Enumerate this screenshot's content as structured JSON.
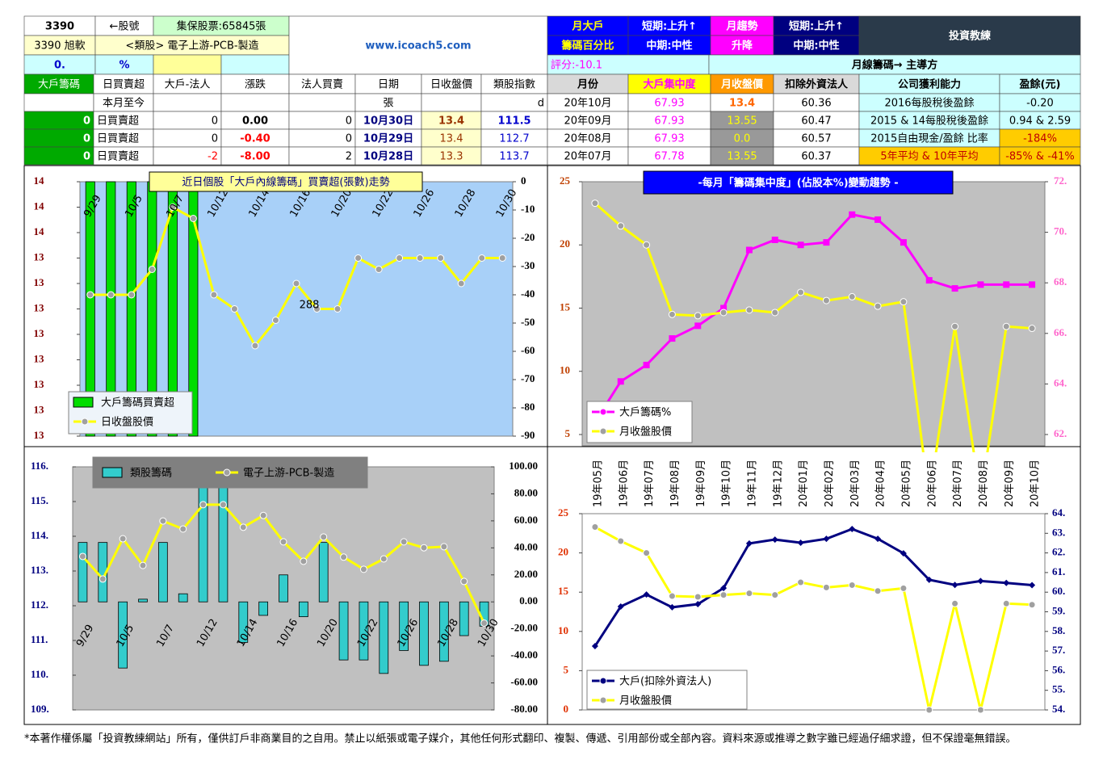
{
  "header": {
    "stock_no": "3390",
    "stock_no_label": "←股號",
    "shares": "集保股票:65845張",
    "name": "3390 旭軟",
    "sector": "<類股> 電子上游-PCB-製造",
    "pct": "0.",
    "pct_unit": "%",
    "site": "www.icoach5.com",
    "m1a": "月大戶",
    "m1b": "籌碼百分比",
    "s1": "短期:上升↑",
    "m1": "中期:中性",
    "t1a": "月趨勢",
    "t1b": "升降",
    "s2": "短期:上升↑",
    "m2": "中期:中性",
    "logo": "投資教練",
    "score": "評分:-10.1",
    "main": "月線籌碼→ 主導方"
  },
  "left_table": {
    "columns": [
      "大戶籌碼",
      "日買賣超",
      "大戶-法人",
      "漲跌",
      "法人買賣",
      "日期",
      "日收盤價",
      "類股指數"
    ],
    "subheader": [
      "本月至今",
      "張",
      "d"
    ],
    "rows": [
      [
        "0",
        "日買賣超",
        "0",
        "0.00",
        "0",
        "10月30日",
        "13.4",
        "111.5"
      ],
      [
        "0",
        "日買賣超",
        "0",
        "-0.40",
        "0",
        "10月29日",
        "13.4",
        "112.7"
      ],
      [
        "0",
        "日買賣超",
        "-2",
        "-8.00",
        "2",
        "10月28日",
        "13.3",
        "113.7"
      ]
    ]
  },
  "right_table": {
    "columns": [
      "月份",
      "大戶集中度",
      "月收盤價",
      "扣除外資法人",
      "公司獲利能力",
      "盈餘(元)"
    ],
    "rows": [
      [
        "20年10月",
        "67.93",
        "13.4",
        "60.36",
        "2016每股稅後盈餘",
        "-0.20"
      ],
      [
        "20年09月",
        "67.93",
        "13.55",
        "60.47",
        "2015 & 14每股稅後盈餘",
        "0.94 & 2.59"
      ],
      [
        "20年08月",
        "67.93",
        "0.0",
        "60.57",
        "2015自由現金/盈餘 比率",
        "-184%"
      ],
      [
        "20年07月",
        "67.78",
        "13.55",
        "60.37",
        "5年平均 & 10年平均",
        "-85% & -41%"
      ]
    ]
  },
  "chart_data": [
    {
      "type": "combo",
      "title": "近日個股「大戶內線籌碼」買賣超(張數)走勢",
      "annotation": "288",
      "categories": [
        "9/29",
        null,
        "10/5",
        null,
        "10/7",
        null,
        "10/12",
        null,
        "10/14",
        null,
        "10/16",
        null,
        "10/20",
        null,
        "10/22",
        null,
        "10/26",
        null,
        "10/28",
        null,
        "10/30"
      ],
      "ylim": [
        13,
        14
      ],
      "yticks": [
        {
          "value": 14,
          "label": "14"
        },
        {
          "value": 13.9,
          "label": "14"
        },
        {
          "value": 13.8,
          "label": "14"
        },
        {
          "value": 13.7,
          "label": "13"
        },
        {
          "value": 13.6,
          "label": "13"
        },
        {
          "value": 13.5,
          "label": "13"
        },
        {
          "value": 13.4,
          "label": "13"
        },
        {
          "value": 13.3,
          "label": "13"
        },
        {
          "value": 13.2,
          "label": "13"
        },
        {
          "value": 13.1,
          "label": "13"
        },
        {
          "value": 13,
          "label": "13"
        }
      ],
      "y2lim": [
        -90,
        0
      ],
      "y2ticks": [
        0,
        -10,
        -20,
        -30,
        -40,
        -50,
        -60,
        -70,
        -80,
        -90
      ],
      "series": [
        {
          "name": "大戶籌碼買賣超",
          "type": "bar",
          "color": "#00dd00",
          "axis": "y2",
          "values": [
            -90,
            -90,
            -90,
            -90,
            -90,
            -90,
            0,
            0,
            0,
            0,
            0,
            0,
            0,
            0,
            0,
            0,
            0,
            0,
            0,
            0,
            0
          ]
        },
        {
          "name": "日收盤股價",
          "type": "line",
          "color": "#ffff00",
          "marker": "circle",
          "axis": "y2",
          "values": [
            -40,
            -40,
            -40,
            -31,
            -9,
            -13,
            -40,
            -45,
            -58,
            -49,
            -36,
            -45,
            -45,
            -27,
            -31,
            -27,
            -27,
            -27,
            -36,
            -27,
            -27
          ]
        }
      ]
    },
    {
      "type": "line",
      "title": "-每月「籌碼集中度」(佔股本%)變動趨勢 -",
      "ylim": [
        5,
        25
      ],
      "yticks": [
        5,
        10,
        15,
        20,
        25
      ],
      "y2lim": [
        62,
        72
      ],
      "y2ticks": [
        {
          "value": 72,
          "label": "72."
        },
        {
          "value": 70,
          "label": "70."
        },
        {
          "value": 68,
          "label": "68."
        },
        {
          "value": 66,
          "label": "66."
        },
        {
          "value": 64,
          "label": "64."
        },
        {
          "value": 62,
          "label": "62."
        }
      ],
      "series": [
        {
          "name": "大戶籌碼%",
          "type": "line",
          "color": "#ff00ff",
          "marker": "square",
          "axis": "y2",
          "values": [
            62.5,
            64.1,
            64.75,
            65.8,
            66.3,
            67.0,
            69.3,
            69.7,
            69.5,
            69.6,
            70.7,
            70.5,
            69.6,
            68.1,
            67.78,
            67.93,
            67.93,
            67.93
          ]
        },
        {
          "name": "月收盤股價",
          "type": "line",
          "color": "#ffff00",
          "marker": "circle",
          "values": [
            23.3,
            21.5,
            20.0,
            14.5,
            14.4,
            14.65,
            14.85,
            14.65,
            16.25,
            15.6,
            15.9,
            15.15,
            15.5,
            0,
            13.55,
            0.0,
            13.55,
            13.4
          ]
        }
      ]
    },
    {
      "type": "combo",
      "categories": [
        "9/29",
        null,
        "10/5",
        null,
        "10/7",
        null,
        "10/12",
        null,
        "10/14",
        null,
        "10/16",
        null,
        "10/20",
        null,
        "10/22",
        null,
        "10/26",
        null,
        "10/28",
        null,
        "10/30"
      ],
      "ylim": [
        109,
        116
      ],
      "yticks": [
        {
          "value": 116,
          "label": "116."
        },
        {
          "value": 115,
          "label": "115."
        },
        {
          "value": 114,
          "label": "114."
        },
        {
          "value": 113,
          "label": "113."
        },
        {
          "value": 112,
          "label": "112."
        },
        {
          "value": 111,
          "label": "111."
        },
        {
          "value": 110,
          "label": "110."
        },
        {
          "value": 109,
          "label": "109."
        }
      ],
      "y2lim": [
        -80,
        100
      ],
      "y2ticks": [
        {
          "value": 100,
          "label": "100.00"
        },
        {
          "value": 80,
          "label": "80.00"
        },
        {
          "value": 60,
          "label": "60.00"
        },
        {
          "value": 40,
          "label": "40.00"
        },
        {
          "value": 20,
          "label": "20.00"
        },
        {
          "value": 0,
          "label": "0.00"
        },
        {
          "value": -20,
          "label": "-20.00"
        },
        {
          "value": -40,
          "label": "-40.00"
        },
        {
          "value": -60,
          "label": "-60.00"
        },
        {
          "value": -80,
          "label": "-80.00"
        }
      ],
      "series": [
        {
          "name": "類股籌碼",
          "type": "bar",
          "color": "#33cccc",
          "axis": "y2",
          "values": [
            44,
            44,
            -49,
            2,
            44,
            6,
            87,
            87,
            -30,
            -10,
            20,
            -11,
            44,
            -43,
            -43,
            -53,
            -36,
            -47,
            -44,
            -25,
            -18
          ]
        },
        {
          "name": "電子上游-PCB-製造",
          "type": "line",
          "color": "#ffff00",
          "marker": "circle",
          "values": [
            113.42,
            112.77,
            113.93,
            113.16,
            114.44,
            114.21,
            114.91,
            114.91,
            114.26,
            114.6,
            113.84,
            113.28,
            113.98,
            113.4,
            113.05,
            113.35,
            113.84,
            113.67,
            113.7,
            112.7,
            111.5
          ]
        }
      ]
    },
    {
      "type": "line",
      "categories": [
        "19年05月",
        "19年06月",
        "19年07月",
        "19年08月",
        "19年09月",
        "19年10月",
        "19年11月",
        "19年12月",
        "20年01月",
        "20年02月",
        "20年03月",
        "20年04月",
        "20年05月",
        "20年06月",
        "20年07月",
        "20年08月",
        "20年09月",
        "20年10月"
      ],
      "ylim": [
        0,
        25
      ],
      "yticks": [
        0,
        5,
        10,
        15,
        20,
        25
      ],
      "y2lim": [
        54,
        64
      ],
      "y2ticks": [
        {
          "value": 64,
          "label": "64."
        },
        {
          "value": 63,
          "label": "63."
        },
        {
          "value": 62,
          "label": "62."
        },
        {
          "value": 61,
          "label": "61."
        },
        {
          "value": 60,
          "label": "60."
        },
        {
          "value": 59,
          "label": "59."
        },
        {
          "value": 58,
          "label": "58."
        },
        {
          "value": 57,
          "label": "57."
        },
        {
          "value": 56,
          "label": "56."
        },
        {
          "value": 55,
          "label": "55."
        },
        {
          "value": 54,
          "label": "54."
        }
      ],
      "series": [
        {
          "name": "大戶(扣除外資法人)",
          "type": "line",
          "color": "#000080",
          "marker": "diamond",
          "axis": "y2",
          "values": [
            57.25,
            59.27,
            59.88,
            59.23,
            59.39,
            60.21,
            62.48,
            62.68,
            62.52,
            62.72,
            63.22,
            62.72,
            61.98,
            60.63,
            60.37,
            60.57,
            60.47,
            60.36
          ]
        },
        {
          "name": "月收盤股價",
          "type": "line",
          "color": "#ffff00",
          "marker": "circle",
          "values": [
            23.3,
            21.5,
            20.0,
            14.5,
            14.4,
            14.65,
            14.85,
            14.65,
            16.25,
            15.6,
            15.9,
            15.15,
            15.5,
            0,
            13.55,
            0.0,
            13.55,
            13.4
          ]
        }
      ]
    }
  ],
  "footer": "*本著作權係屬「投資教練網站」所有，僅供訂戶非商業目的之自用。禁止以紙張或電子媒介，其他任何形式翻印、複製、傳遞、引用部份或全部內容。資料來源或推導之數字雖已經過仔細求證，但不保證毫無錯誤。"
}
